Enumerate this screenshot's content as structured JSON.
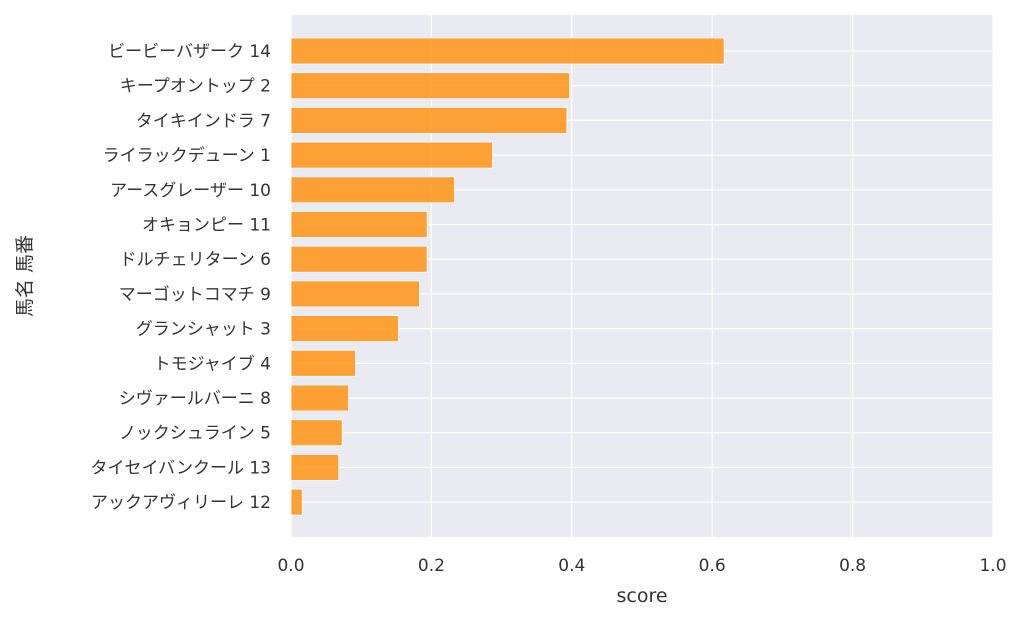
{
  "chart_data": {
    "type": "bar",
    "orientation": "horizontal",
    "categories": [
      "ビービーバザーク 14",
      "キープオントップ 2",
      "タイキインドラ 7",
      "ライラックデューン 1",
      "アースグレーザー 10",
      "オキョンピー 11",
      "ドルチェリターン 6",
      "マーゴットコマチ 9",
      "グランシャット 3",
      "トモジャイブ 4",
      "シヴァールバーニ 8",
      "ノックシュライン 5",
      "タイセイバンクール 13",
      "アックアヴィリーレ 12"
    ],
    "values": [
      0.617,
      0.397,
      0.393,
      0.287,
      0.233,
      0.194,
      0.194,
      0.183,
      0.153,
      0.092,
      0.082,
      0.073,
      0.068,
      0.016
    ],
    "xlabel": "score",
    "ylabel": "馬名 馬番",
    "xlim": [
      0.0,
      1.0
    ],
    "xticks": [
      "0.0",
      "0.2",
      "0.4",
      "0.6",
      "0.8",
      "1.0"
    ],
    "grid": true,
    "colors": {
      "bar": "#ff9922",
      "plot_background": "#eaeaf2",
      "grid": "#ffffff",
      "text": "#333333"
    }
  }
}
